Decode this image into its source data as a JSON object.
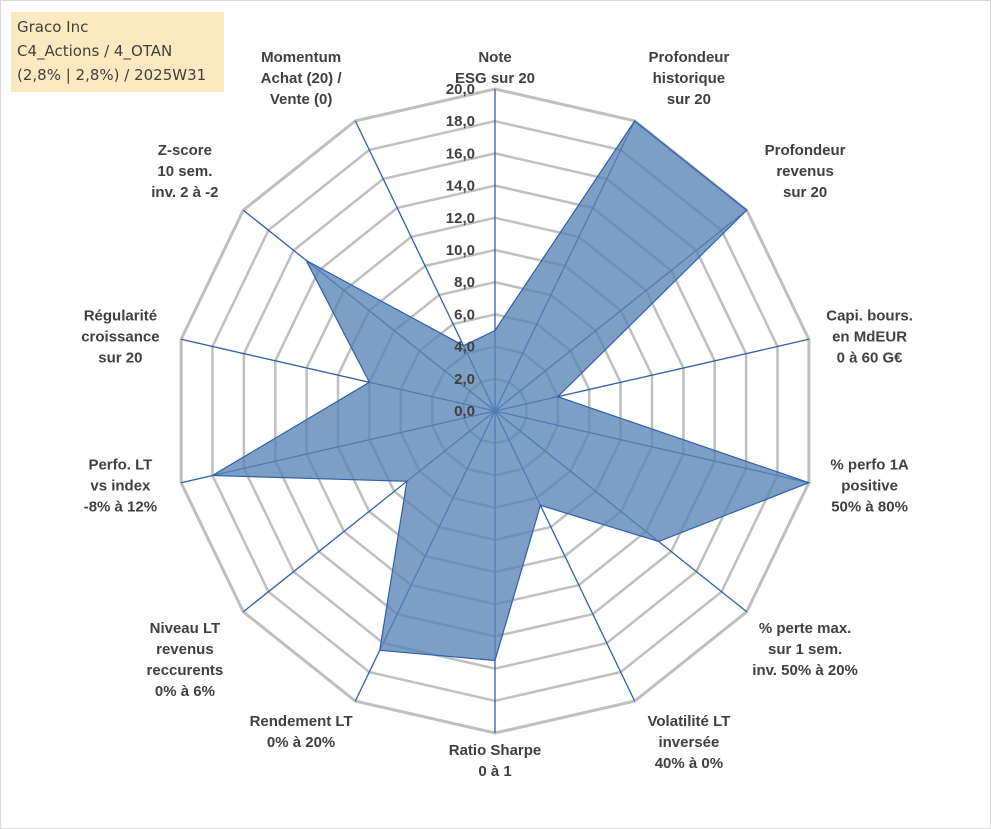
{
  "info_box": {
    "line1": "Graco Inc",
    "line2": "C4_Actions / 4_OTAN",
    "line3": "(2,8% | 2,8%) / 2025W31"
  },
  "colors": {
    "fill": "#5a84b5",
    "spoke": "#2f5fae",
    "grid": "#bfbfbf",
    "text": "#404040",
    "info_bg": "#fde9c0"
  },
  "chart_data": {
    "type": "radar",
    "rlim": [
      0,
      20
    ],
    "ticks": [
      "0,0",
      "2,0",
      "4,0",
      "6,0",
      "8,0",
      "10,0",
      "12,0",
      "14,0",
      "16,0",
      "18,0",
      "20,0"
    ],
    "grid": true,
    "axes": [
      {
        "label": [
          "Note",
          "ESG sur 20"
        ],
        "value": 5.0
      },
      {
        "label": [
          "Profondeur",
          "historique",
          "sur 20"
        ],
        "value": 20.0
      },
      {
        "label": [
          "Profondeur",
          "revenus",
          "sur 20"
        ],
        "value": 20.0
      },
      {
        "label": [
          "Capi. bours.",
          "en MdEUR",
          "0 à 60 G€"
        ],
        "value": 4.0
      },
      {
        "label": [
          "% perfo 1A",
          "positive",
          "50% à 80%"
        ],
        "value": 20.0
      },
      {
        "label": [
          "% perte max.",
          "sur 1 sem.",
          "inv. 50% à 20%"
        ],
        "value": 13.0
      },
      {
        "label": [
          "Volatilité LT",
          "inversée",
          "40% à 0%"
        ],
        "value": 6.5
      },
      {
        "label": [
          "Ratio Sharpe",
          "0 à 1"
        ],
        "value": 15.5
      },
      {
        "label": [
          "Rendement LT",
          "0% à 20%"
        ],
        "value": 16.5
      },
      {
        "label": [
          "Niveau LT",
          "revenus",
          "reccurents",
          "0% à 6%"
        ],
        "value": 7.0
      },
      {
        "label": [
          "Perfo. LT",
          "vs index",
          "-8% à 12%"
        ],
        "value": 18.0
      },
      {
        "label": [
          "Régularité",
          "croissance",
          "sur 20"
        ],
        "value": 8.0
      },
      {
        "label": [
          "Z-score",
          "10 sem.",
          "inv. 2 à -2"
        ],
        "value": 15.0
      },
      {
        "label": [
          "Momentum",
          "Achat (20) /",
          "Vente (0)"
        ],
        "value": 4.5
      }
    ]
  }
}
